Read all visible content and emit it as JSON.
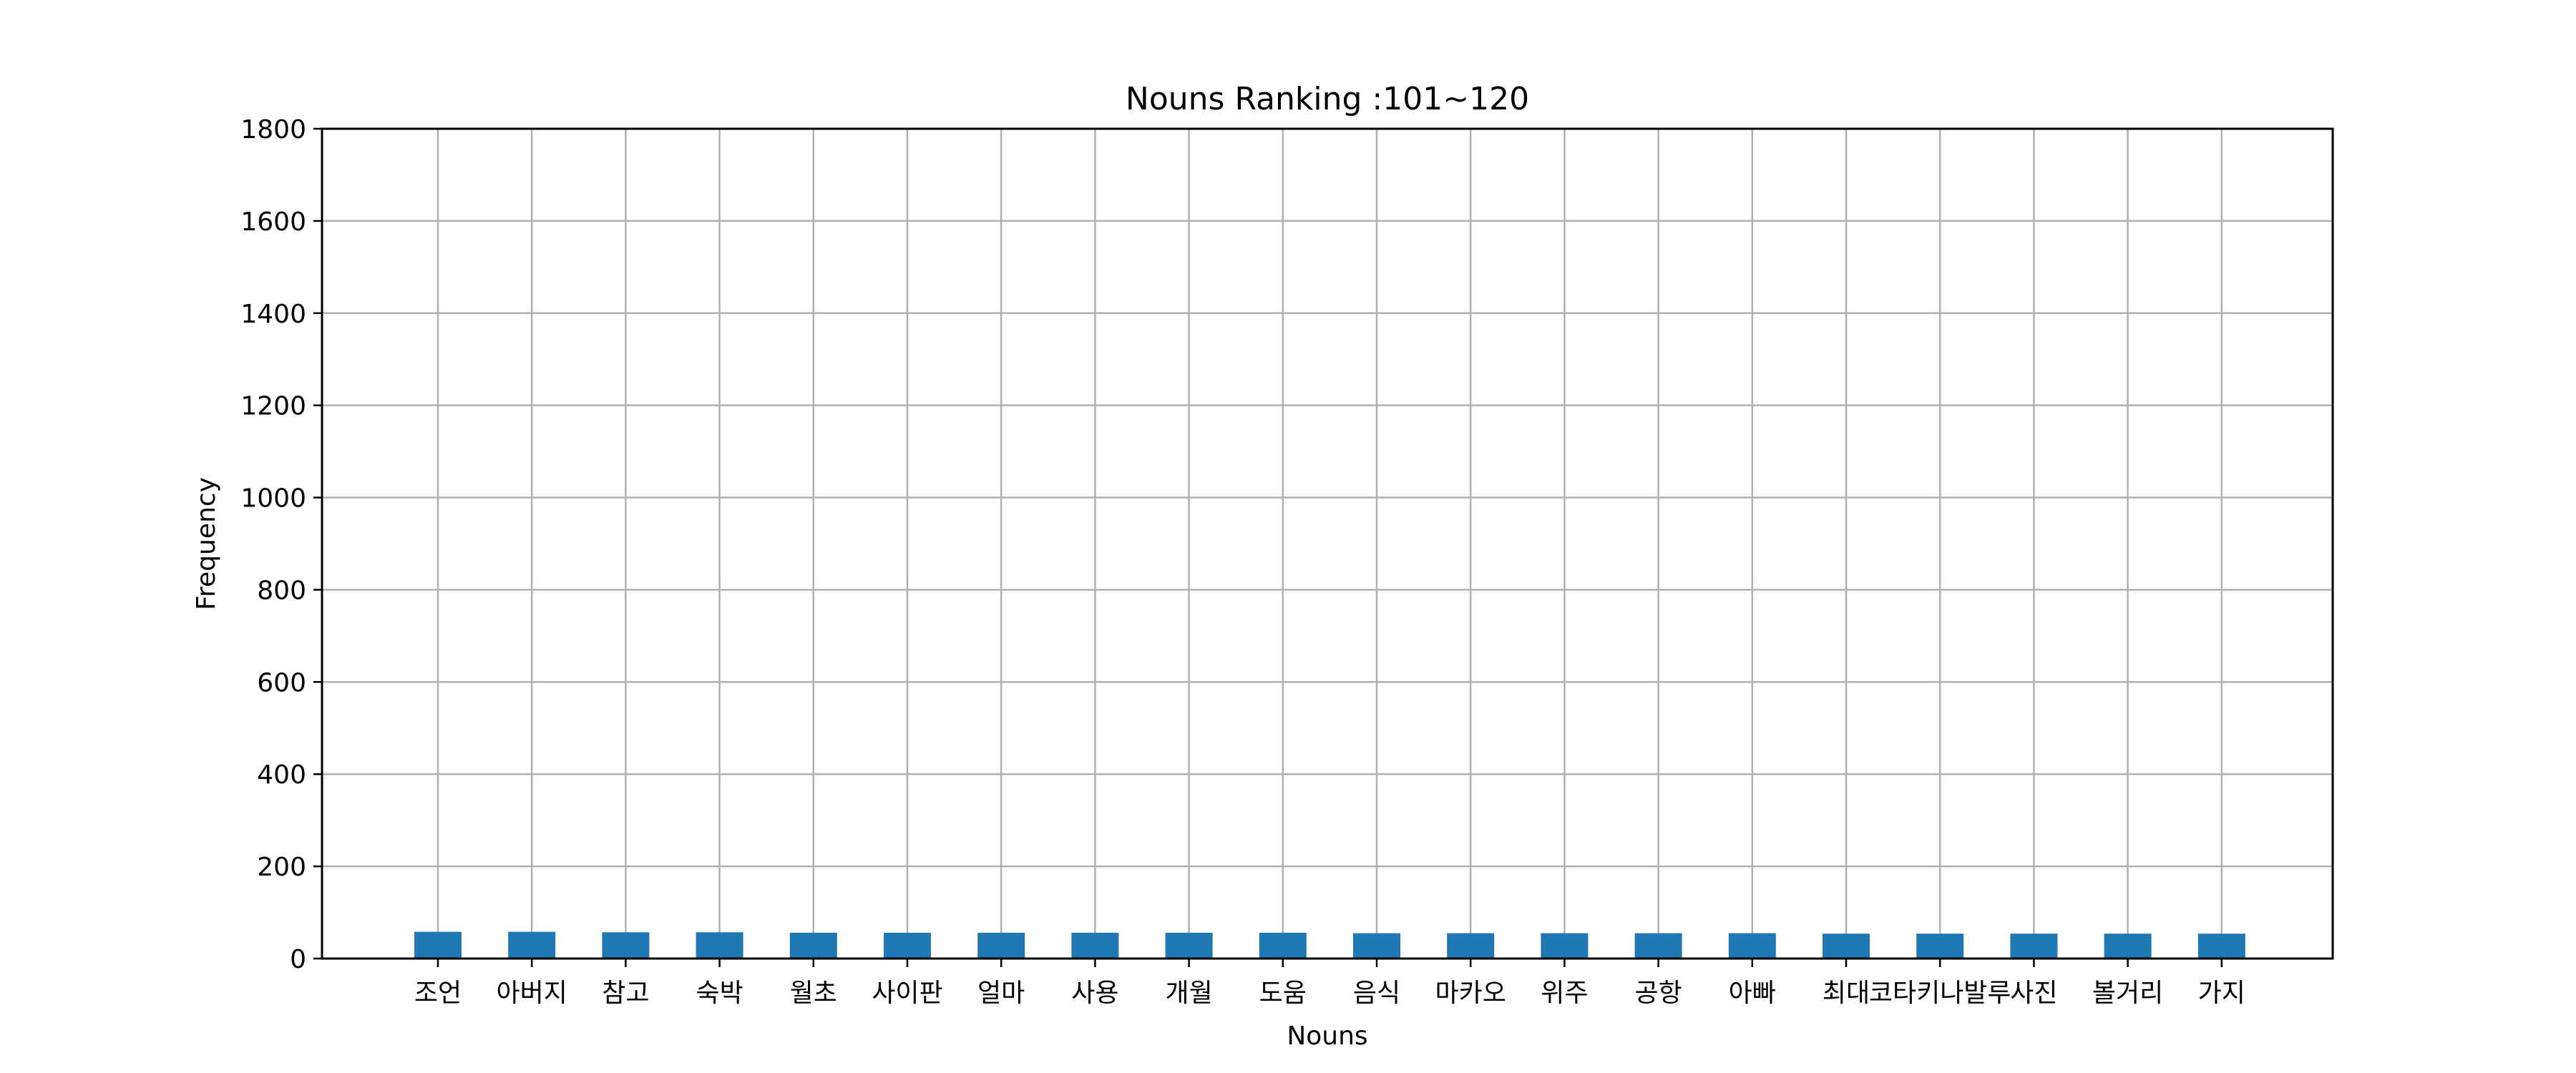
{
  "chart_data": {
    "type": "bar",
    "title": "Nouns Ranking :101~120",
    "xlabel": "Nouns",
    "ylabel": "Frequency",
    "ylim": [
      0,
      1800
    ],
    "yticks": [
      0,
      200,
      400,
      600,
      800,
      1000,
      1200,
      1400,
      1600,
      1800
    ],
    "grid": true,
    "bar_color": "#1f77b4",
    "categories": [
      "조언",
      "아버지",
      "참고",
      "숙박",
      "월초",
      "사이판",
      "얼마",
      "사용",
      "개월",
      "도움",
      "음식",
      "마카오",
      "위주",
      "공항",
      "아빠",
      "최대",
      "코타키나발루",
      "사진",
      "볼거리",
      "가지"
    ],
    "values": [
      58,
      58,
      57,
      57,
      56,
      56,
      56,
      56,
      56,
      56,
      55,
      55,
      55,
      55,
      55,
      54,
      54,
      54,
      54,
      54
    ]
  }
}
